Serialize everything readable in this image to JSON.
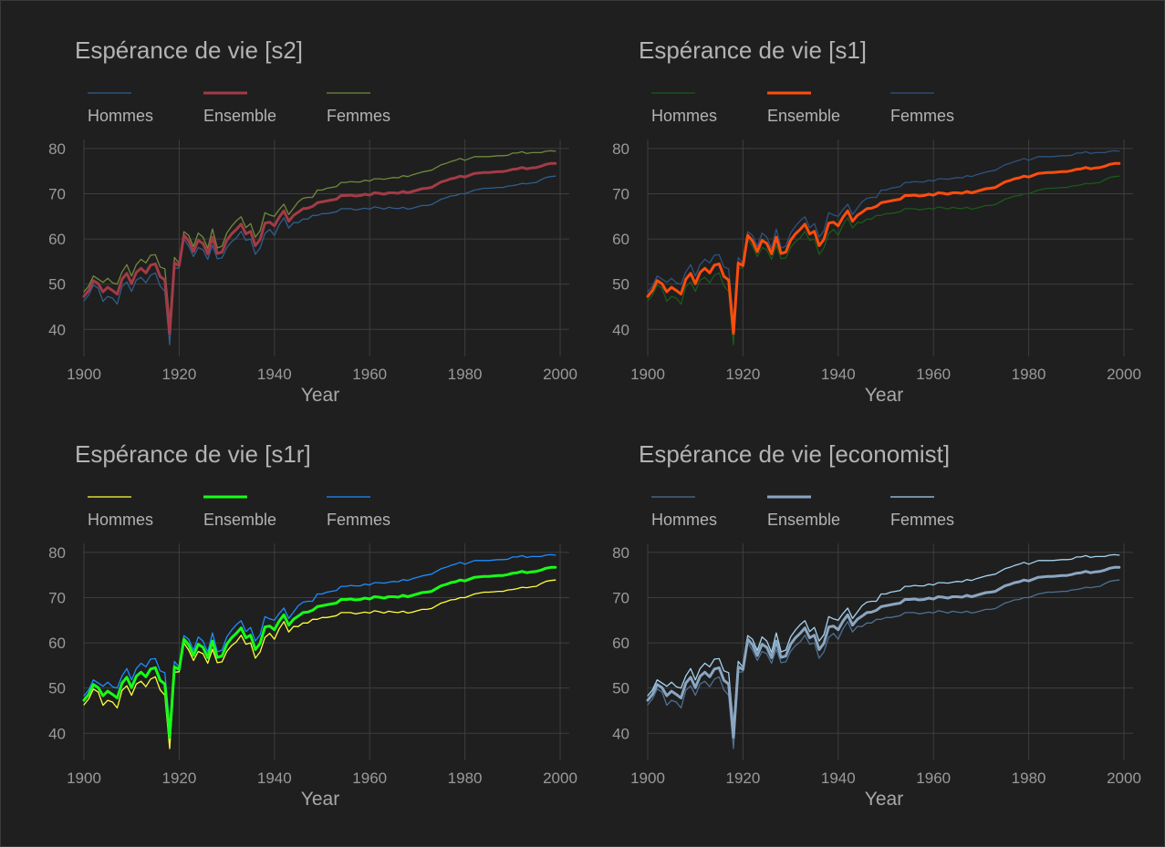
{
  "chart_data": [
    {
      "type": "line",
      "title": "Espérance de vie [s2]",
      "xlabel": "Year",
      "ylabel": "",
      "xlim": [
        1900,
        2000
      ],
      "ylim": [
        34,
        82
      ],
      "xticks": [
        "1900",
        "1920",
        "1940",
        "1960",
        "1980",
        "2000"
      ],
      "yticks": [
        "40",
        "50",
        "60",
        "70",
        "80"
      ],
      "grid": true,
      "legend": "top",
      "series": [
        {
          "name": "Hommes",
          "color": "#2f5e8e",
          "width": 1.3
        },
        {
          "name": "Ensemble",
          "color": "#a33b46",
          "width": 3
        },
        {
          "name": "Femmes",
          "color": "#6f8a3c",
          "width": 1.3
        }
      ]
    },
    {
      "type": "line",
      "title": "Espérance de vie [s1]",
      "xlabel": "Year",
      "ylabel": "",
      "xlim": [
        1900,
        2000
      ],
      "ylim": [
        34,
        82
      ],
      "xticks": [
        "1900",
        "1920",
        "1940",
        "1960",
        "1980",
        "2000"
      ],
      "yticks": [
        "40",
        "50",
        "60",
        "70",
        "80"
      ],
      "grid": true,
      "legend": "top",
      "series": [
        {
          "name": "Hommes",
          "color": "#1a5a1a",
          "width": 1.3
        },
        {
          "name": "Ensemble",
          "color": "#ff4d0d",
          "width": 3
        },
        {
          "name": "Femmes",
          "color": "#2e5380",
          "width": 1.3
        }
      ]
    },
    {
      "type": "line",
      "title": "Espérance de vie [s1r]",
      "xlabel": "Year",
      "ylabel": "",
      "xlim": [
        1900,
        2000
      ],
      "ylim": [
        34,
        82
      ],
      "xticks": [
        "1900",
        "1920",
        "1940",
        "1960",
        "1980",
        "2000"
      ],
      "yticks": [
        "40",
        "50",
        "60",
        "70",
        "80"
      ],
      "grid": true,
      "legend": "top",
      "series": [
        {
          "name": "Hommes",
          "color": "#ffff3a",
          "width": 1.3
        },
        {
          "name": "Ensemble",
          "color": "#17ff17",
          "width": 3
        },
        {
          "name": "Femmes",
          "color": "#1e8cff",
          "width": 1.3
        }
      ]
    },
    {
      "type": "line",
      "title": "Espérance de vie [economist]",
      "xlabel": "Year",
      "ylabel": "",
      "xlim": [
        1900,
        2000
      ],
      "ylim": [
        34,
        82
      ],
      "xticks": [
        "1900",
        "1920",
        "1940",
        "1960",
        "1980",
        "2000"
      ],
      "yticks": [
        "40",
        "50",
        "60",
        "70",
        "80"
      ],
      "grid": true,
      "legend": "top",
      "series": [
        {
          "name": "Hommes",
          "color": "#4e6f90",
          "width": 1.3
        },
        {
          "name": "Ensemble",
          "color": "#8ba6c1",
          "width": 3
        },
        {
          "name": "Femmes",
          "color": "#a5d4ee",
          "width": 1.3
        }
      ]
    }
  ],
  "life_expectancy": {
    "years": [
      1900,
      1901,
      1902,
      1903,
      1904,
      1905,
      1906,
      1907,
      1908,
      1909,
      1910,
      1911,
      1912,
      1913,
      1914,
      1915,
      1916,
      1917,
      1918,
      1919,
      1920,
      1921,
      1922,
      1923,
      1924,
      1925,
      1926,
      1927,
      1928,
      1929,
      1930,
      1931,
      1932,
      1933,
      1934,
      1935,
      1936,
      1937,
      1938,
      1939,
      1940,
      1941,
      1942,
      1943,
      1944,
      1945,
      1946,
      1947,
      1948,
      1949,
      1950,
      1951,
      1952,
      1953,
      1954,
      1955,
      1956,
      1957,
      1958,
      1959,
      1960,
      1961,
      1962,
      1963,
      1964,
      1965,
      1966,
      1967,
      1968,
      1969,
      1970,
      1971,
      1972,
      1973,
      1974,
      1975,
      1976,
      1977,
      1978,
      1979,
      1980,
      1981,
      1982,
      1983,
      1984,
      1985,
      1986,
      1987,
      1988,
      1989,
      1990,
      1991,
      1992,
      1993,
      1994,
      1995,
      1996,
      1997,
      1998,
      1999
    ],
    "hommes": [
      46.3,
      47.6,
      49.8,
      49.1,
      46.2,
      47.3,
      46.9,
      45.6,
      49.5,
      50.5,
      48.4,
      50.9,
      51.5,
      50.3,
      52.0,
      52.5,
      49.6,
      48.4,
      36.6,
      53.5,
      53.6,
      60.0,
      58.4,
      56.1,
      58.1,
      57.6,
      55.5,
      58.6,
      55.6,
      55.8,
      58.1,
      59.4,
      60.2,
      61.7,
      59.7,
      60.0,
      56.6,
      58.0,
      61.2,
      62.1,
      60.8,
      63.1,
      64.7,
      62.4,
      63.6,
      63.6,
      64.4,
      64.4,
      65.2,
      65.2,
      65.6,
      65.6,
      65.8,
      66.0,
      66.7,
      66.7,
      66.7,
      66.4,
      66.6,
      66.8,
      66.6,
      67.1,
      66.9,
      66.6,
      67.0,
      66.8,
      66.7,
      67.0,
      66.6,
      66.8,
      67.1,
      67.4,
      67.4,
      67.6,
      68.2,
      68.8,
      69.1,
      69.5,
      69.6,
      70.0,
      70.0,
      70.4,
      70.8,
      71.0,
      71.2,
      71.2,
      71.3,
      71.4,
      71.4,
      71.7,
      71.8,
      72.0,
      72.3,
      72.2,
      72.4,
      72.5,
      73.1,
      73.6,
      73.8,
      73.9
    ],
    "ensemble": [
      47.3,
      48.6,
      50.8,
      50.1,
      48.3,
      49.3,
      48.6,
      47.8,
      51.1,
      52.4,
      50.1,
      52.6,
      53.5,
      52.5,
      54.2,
      54.5,
      51.7,
      50.9,
      39.1,
      54.7,
      54.1,
      60.8,
      59.6,
      57.2,
      59.7,
      59.0,
      56.7,
      60.4,
      56.8,
      57.1,
      59.7,
      61.1,
      62.1,
      63.3,
      61.1,
      61.7,
      58.5,
      59.9,
      63.5,
      63.7,
      62.9,
      64.8,
      66.2,
      63.9,
      65.2,
      65.9,
      66.7,
      66.8,
      67.2,
      68.0,
      68.2,
      68.4,
      68.6,
      68.8,
      69.6,
      69.6,
      69.7,
      69.5,
      69.6,
      69.9,
      69.7,
      70.2,
      70.1,
      69.9,
      70.2,
      70.2,
      70.1,
      70.5,
      70.2,
      70.5,
      70.8,
      71.1,
      71.2,
      71.4,
      72.0,
      72.6,
      72.9,
      73.3,
      73.5,
      73.9,
      73.7,
      74.1,
      74.5,
      74.6,
      74.7,
      74.7,
      74.8,
      74.9,
      74.9,
      75.1,
      75.4,
      75.5,
      75.8,
      75.5,
      75.7,
      75.8,
      76.1,
      76.5,
      76.7,
      76.7
    ],
    "femmes": [
      48.3,
      49.6,
      51.8,
      51.1,
      50.4,
      51.3,
      50.3,
      50.0,
      52.7,
      54.3,
      51.8,
      54.3,
      55.5,
      54.7,
      56.4,
      56.5,
      53.8,
      53.4,
      41.6,
      55.9,
      54.6,
      61.6,
      60.8,
      58.3,
      61.3,
      60.4,
      57.9,
      62.2,
      58.0,
      58.4,
      61.3,
      62.8,
      64.0,
      64.9,
      62.5,
      63.4,
      60.4,
      61.8,
      65.8,
      65.3,
      65.0,
      66.5,
      67.7,
      65.4,
      66.8,
      68.2,
      69.0,
      69.2,
      69.2,
      70.8,
      70.8,
      71.2,
      71.4,
      71.6,
      72.5,
      72.5,
      72.7,
      72.6,
      72.6,
      73.0,
      72.8,
      73.3,
      73.3,
      73.2,
      73.4,
      73.6,
      73.5,
      74.0,
      73.8,
      74.2,
      74.5,
      74.8,
      75.0,
      75.2,
      75.8,
      76.4,
      76.7,
      77.1,
      77.4,
      77.8,
      77.4,
      77.8,
      78.2,
      78.2,
      78.2,
      78.2,
      78.3,
      78.4,
      78.4,
      78.5,
      79.0,
      79.0,
      79.3,
      78.9,
      79.1,
      79.1,
      79.1,
      79.4,
      79.5,
      79.4
    ]
  }
}
